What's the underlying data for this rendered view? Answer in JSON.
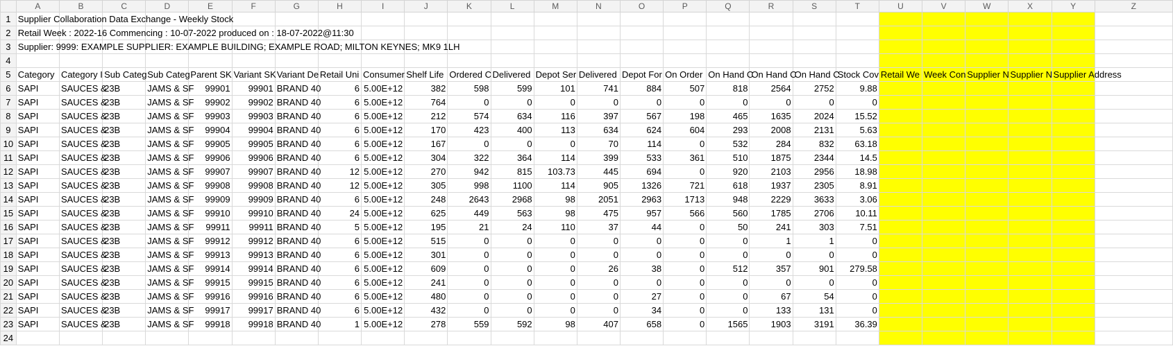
{
  "sheet": {
    "columns": [
      "A",
      "B",
      "C",
      "D",
      "E",
      "F",
      "G",
      "H",
      "I",
      "J",
      "K",
      "L",
      "M",
      "N",
      "O",
      "P",
      "Q",
      "R",
      "S",
      "T",
      "U",
      "V",
      "W",
      "X",
      "Y",
      "Z"
    ],
    "row_numbers": [
      "1",
      "2",
      "3",
      "4",
      "5",
      "6",
      "7",
      "8",
      "9",
      "10",
      "11",
      "12",
      "13",
      "14",
      "15",
      "16",
      "17",
      "18",
      "19",
      "20",
      "21",
      "22",
      "23",
      "24"
    ],
    "title_line": "Supplier Collaboration Data Exchange - Weekly Stock",
    "week_line": "Retail Week : 2022-16   Commencing : 10-07-2022   produced on : 18-07-2022@11:30",
    "supplier_line": "Supplier: 9999: EXAMPLE SUPPLIER: EXAMPLE BUILDING; EXAMPLE ROAD; MILTON KEYNES; MK9 1LH",
    "headers": [
      "Category",
      "Category I",
      "Sub Categ",
      "Sub Categ",
      "Parent SK",
      "Variant SK",
      "Variant De",
      "Retail Uni",
      "Consumer",
      "Shelf Life",
      "Ordered C",
      "Delivered",
      "Depot Ser",
      "Delivered",
      "Depot For",
      "On Order",
      "On Hand C",
      "On Hand C",
      "On Hand C",
      "Stock Cov",
      "Retail We",
      "Week Con",
      "Supplier N",
      "Supplier N",
      "Supplier Address",
      ""
    ],
    "rows": [
      [
        "SAPI",
        "SAUCES &",
        "23B",
        "JAMS & SF",
        "99901",
        "99901",
        "BRAND 40",
        "6",
        "5.00E+12",
        "382",
        "598",
        "599",
        "101",
        "741",
        "884",
        "507",
        "818",
        "2564",
        "2752",
        "9.88"
      ],
      [
        "SAPI",
        "SAUCES &",
        "23B",
        "JAMS & SF",
        "99902",
        "99902",
        "BRAND 40",
        "6",
        "5.00E+12",
        "764",
        "0",
        "0",
        "0",
        "0",
        "0",
        "0",
        "0",
        "0",
        "0",
        "0"
      ],
      [
        "SAPI",
        "SAUCES &",
        "23B",
        "JAMS & SF",
        "99903",
        "99903",
        "BRAND 40",
        "6",
        "5.00E+12",
        "212",
        "574",
        "634",
        "116",
        "397",
        "567",
        "198",
        "465",
        "1635",
        "2024",
        "15.52"
      ],
      [
        "SAPI",
        "SAUCES &",
        "23B",
        "JAMS & SF",
        "99904",
        "99904",
        "BRAND 40",
        "6",
        "5.00E+12",
        "170",
        "423",
        "400",
        "113",
        "634",
        "624",
        "604",
        "293",
        "2008",
        "2131",
        "5.63"
      ],
      [
        "SAPI",
        "SAUCES &",
        "23B",
        "JAMS & SF",
        "99905",
        "99905",
        "BRAND 40",
        "6",
        "5.00E+12",
        "167",
        "0",
        "0",
        "0",
        "70",
        "114",
        "0",
        "532",
        "284",
        "832",
        "63.18"
      ],
      [
        "SAPI",
        "SAUCES &",
        "23B",
        "JAMS & SF",
        "99906",
        "99906",
        "BRAND 40",
        "6",
        "5.00E+12",
        "304",
        "322",
        "364",
        "114",
        "399",
        "533",
        "361",
        "510",
        "1875",
        "2344",
        "14.5"
      ],
      [
        "SAPI",
        "SAUCES &",
        "23B",
        "JAMS & SF",
        "99907",
        "99907",
        "BRAND 40",
        "12",
        "5.00E+12",
        "270",
        "942",
        "815",
        "103.73",
        "445",
        "694",
        "0",
        "920",
        "2103",
        "2956",
        "18.98"
      ],
      [
        "SAPI",
        "SAUCES &",
        "23B",
        "JAMS & SF",
        "99908",
        "99908",
        "BRAND 40",
        "12",
        "5.00E+12",
        "305",
        "998",
        "1100",
        "114",
        "905",
        "1326",
        "721",
        "618",
        "1937",
        "2305",
        "8.91"
      ],
      [
        "SAPI",
        "SAUCES &",
        "23B",
        "JAMS & SF",
        "99909",
        "99909",
        "BRAND 40",
        "6",
        "5.00E+12",
        "248",
        "2643",
        "2968",
        "98",
        "2051",
        "2963",
        "1713",
        "948",
        "2229",
        "3633",
        "3.06"
      ],
      [
        "SAPI",
        "SAUCES &",
        "23B",
        "JAMS & SF",
        "99910",
        "99910",
        "BRAND 40",
        "24",
        "5.00E+12",
        "625",
        "449",
        "563",
        "98",
        "475",
        "957",
        "566",
        "560",
        "1785",
        "2706",
        "10.11"
      ],
      [
        "SAPI",
        "SAUCES &",
        "23B",
        "JAMS & SF",
        "99911",
        "99911",
        "BRAND 40",
        "5",
        "5.00E+12",
        "195",
        "21",
        "24",
        "110",
        "37",
        "44",
        "0",
        "50",
        "241",
        "303",
        "7.51"
      ],
      [
        "SAPI",
        "SAUCES &",
        "23B",
        "JAMS & SF",
        "99912",
        "99912",
        "BRAND 40",
        "6",
        "5.00E+12",
        "515",
        "0",
        "0",
        "0",
        "0",
        "0",
        "0",
        "0",
        "1",
        "1",
        "0"
      ],
      [
        "SAPI",
        "SAUCES &",
        "23B",
        "JAMS & SF",
        "99913",
        "99913",
        "BRAND 40",
        "6",
        "5.00E+12",
        "301",
        "0",
        "0",
        "0",
        "0",
        "0",
        "0",
        "0",
        "0",
        "0",
        "0"
      ],
      [
        "SAPI",
        "SAUCES &",
        "23B",
        "JAMS & SF",
        "99914",
        "99914",
        "BRAND 40",
        "6",
        "5.00E+12",
        "609",
        "0",
        "0",
        "0",
        "26",
        "38",
        "0",
        "512",
        "357",
        "901",
        "279.58"
      ],
      [
        "SAPI",
        "SAUCES &",
        "23B",
        "JAMS & SF",
        "99915",
        "99915",
        "BRAND 40",
        "6",
        "5.00E+12",
        "241",
        "0",
        "0",
        "0",
        "0",
        "0",
        "0",
        "0",
        "0",
        "0",
        "0"
      ],
      [
        "SAPI",
        "SAUCES &",
        "23B",
        "JAMS & SF",
        "99916",
        "99916",
        "BRAND 40",
        "6",
        "5.00E+12",
        "480",
        "0",
        "0",
        "0",
        "0",
        "27",
        "0",
        "0",
        "67",
        "54",
        "0"
      ],
      [
        "SAPI",
        "SAUCES &",
        "23B",
        "JAMS & SF",
        "99917",
        "99917",
        "BRAND 40",
        "6",
        "5.00E+12",
        "432",
        "0",
        "0",
        "0",
        "0",
        "34",
        "0",
        "0",
        "133",
        "131",
        "0"
      ],
      [
        "SAPI",
        "SAUCES &",
        "23B",
        "JAMS & SF",
        "99918",
        "99918",
        "BRAND 40",
        "1",
        "5.00E+12",
        "278",
        "559",
        "592",
        "98",
        "407",
        "658",
        "0",
        "1565",
        "1903",
        "3191",
        "36.39"
      ]
    ],
    "highlight_color": "#ffff00"
  }
}
